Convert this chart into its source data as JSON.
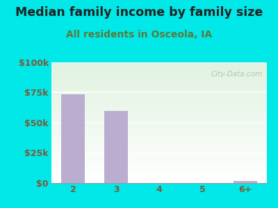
{
  "title": "Median family income by family size",
  "subtitle": "All residents in Osceola, IA",
  "categories": [
    "2",
    "3",
    "4",
    "5",
    "6+"
  ],
  "values": [
    73500,
    60000,
    0,
    0,
    2000
  ],
  "bar_color": "#bbadd0",
  "bg_color": "#00e8e8",
  "plot_bg_top_left": "#d4edda",
  "plot_bg_bottom": "#f5fff5",
  "title_color": "#222222",
  "subtitle_color": "#5a7a3a",
  "tick_color": "#7a5a3a",
  "yticks": [
    0,
    25000,
    50000,
    75000,
    100000
  ],
  "ytick_labels": [
    "$0",
    "$25k",
    "$50k",
    "$75k",
    "$100k"
  ],
  "ylim": [
    0,
    100000
  ],
  "watermark": "City-Data.com",
  "title_fontsize": 12.5,
  "subtitle_fontsize": 10,
  "tick_fontsize": 9,
  "grid_color": "#ccddcc"
}
